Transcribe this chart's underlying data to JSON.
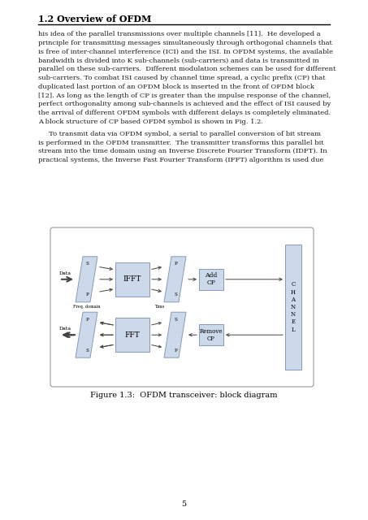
{
  "title": "1.2 Overview of OFDM",
  "para1_lines": [
    "his idea of the parallel transmissions over multiple channels [11].  He developed a",
    "principle for transmitting messages simultaneously through orthogonal channels that",
    "is free of inter-channel interference (ICI) and the ISI. In OFDM systems, the available",
    "bandwidth is divided into K sub-channels (sub-carriers) and data is transmitted in",
    "parallel on these sub-carriers.  Different modulation schemes can be used for different",
    "sub-carriers. To combat ISI caused by channel time spread, a cyclic prefix (CP) that",
    "duplicated last portion of an OFDM block is inserted in the front of OFDM block",
    "[12]. As long as the length of CP is greater than the impulse response of the channel,",
    "perfect orthogonality among sub-channels is achieved and the effect of ISI caused by",
    "the arrival of different OFDM symbols with different delays is completely eliminated.",
    "A block structure of CP based OFDM symbol is shown in Fig. 1.2."
  ],
  "para2_lines": [
    "     To transmit data via OFDM symbol, a serial to parallel conversion of bit stream",
    "is performed in the OFDM transmitter.  The transmitter transforms this parallel bit",
    "stream into the time domain using an Inverse Discrete Fourier Transform (IDFT). In",
    "practical systems, the Inverse Fast Fourier Transform (IFFT) algorithm is used due"
  ],
  "figure_caption": "Figure 1.3:  OFDM transceiver: block diagram",
  "page_number": "5",
  "bg_color": "#ffffff",
  "text_color": "#1a1a1a",
  "box_fill": "#ccd9ea",
  "box_edge": "#8899bb",
  "channel_fill": "#ccd9ea",
  "arrow_color": "#444444",
  "heading_color": "#000000"
}
